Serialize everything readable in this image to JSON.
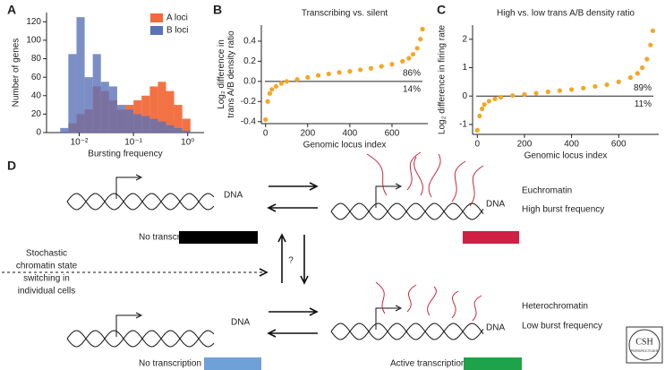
{
  "chart_data": [
    {
      "type": "histogram",
      "label": "A",
      "ylabel": "Number of genes",
      "xlabel": "Bursting frequency",
      "xscale": "log",
      "bins": [
        0.00316,
        0.00447,
        0.00631,
        0.00891,
        0.0126,
        0.0178,
        0.0251,
        0.0355,
        0.0501,
        0.0708,
        0.1,
        0.141,
        0.2,
        0.282,
        0.398,
        0.562,
        0.794,
        1.122,
        1.585
      ],
      "series": [
        {
          "name": "A loci",
          "color": "#f26a3b",
          "values": [
            0,
            0,
            10,
            20,
            25,
            50,
            45,
            35,
            25,
            30,
            35,
            40,
            50,
            55,
            45,
            30,
            15,
            0
          ]
        },
        {
          "name": "B loci",
          "color": "#5a72b8",
          "values": [
            0,
            5,
            85,
            125,
            60,
            85,
            55,
            50,
            30,
            25,
            20,
            18,
            15,
            12,
            8,
            5,
            2,
            0
          ]
        }
      ],
      "xlim": [
        0.0025,
        2
      ],
      "xticks": [
        {
          "value": 0.01,
          "label": "10⁻²"
        },
        {
          "value": 0.1,
          "label": "10⁻¹"
        },
        {
          "value": 1,
          "label": "10⁰"
        }
      ],
      "ylim": [
        0,
        130
      ],
      "yticks": [
        0,
        20,
        40,
        60,
        80,
        100,
        120
      ],
      "legend": "top-right"
    },
    {
      "type": "scatter",
      "label": "B",
      "title": "Transcribing vs. silent",
      "ylabel": [
        "Log₂ difference in",
        "trans A/B density ratio"
      ],
      "xlabel": "Genomic locus index",
      "color": "#f5a623",
      "x": [
        0,
        10,
        20,
        30,
        50,
        75,
        100,
        150,
        200,
        250,
        300,
        350,
        400,
        450,
        500,
        550,
        600,
        650,
        680,
        700,
        720,
        735,
        745
      ],
      "values": [
        -0.38,
        -0.2,
        -0.12,
        -0.08,
        -0.05,
        -0.02,
        0,
        0.02,
        0.04,
        0.06,
        0.075,
        0.09,
        0.1,
        0.115,
        0.13,
        0.15,
        0.17,
        0.2,
        0.23,
        0.27,
        0.33,
        0.42,
        0.52
      ],
      "xlim": [
        -20,
        770
      ],
      "xticks": [
        0,
        200,
        400,
        600
      ],
      "ylim": [
        -0.42,
        0.56
      ],
      "yticks": [
        -0.4,
        -0.2,
        {
          "value": 0,
          "label": "0.0"
        },
        0.2,
        0.4
      ],
      "hline": 0,
      "annotations": [
        "86%",
        "14%"
      ]
    },
    {
      "type": "scatter",
      "label": "C",
      "title": "High vs. low trans A/B density ratio",
      "ylabel": [
        "Log₂ difference in firing rate"
      ],
      "xlabel": "Genomic locus index",
      "color": "#f5a623",
      "x": [
        0,
        10,
        20,
        30,
        50,
        75,
        100,
        150,
        200,
        250,
        300,
        350,
        400,
        450,
        500,
        550,
        600,
        650,
        680,
        700,
        720,
        735,
        745
      ],
      "values": [
        -1.2,
        -0.7,
        -0.45,
        -0.3,
        -0.18,
        -0.1,
        -0.04,
        0.02,
        0.06,
        0.1,
        0.15,
        0.19,
        0.23,
        0.28,
        0.34,
        0.4,
        0.5,
        0.65,
        0.8,
        1,
        1.3,
        1.8,
        2.3
      ],
      "xlim": [
        -20,
        770
      ],
      "xticks": [
        0,
        200,
        400,
        600
      ],
      "ylim": [
        -1.35,
        2.5
      ],
      "yticks": [
        -1,
        0,
        1,
        2
      ],
      "hline": 0,
      "annotations": [
        "89%",
        "11%"
      ]
    }
  ],
  "diagram": {
    "label": "D",
    "dna": "DNA",
    "euchromatin": "Euchromatin",
    "high": "High burst frequency",
    "heterochromatin": "Heterochromatin",
    "low": "Low burst frequency",
    "no_transcription": "No transcription",
    "active": "Active transcription",
    "question": "?",
    "stochastic": [
      "Stochastic",
      "chromatin state",
      "switching in",
      "individual cells"
    ],
    "logo": [
      "CSH",
      "PERSPECTIVES"
    ]
  }
}
